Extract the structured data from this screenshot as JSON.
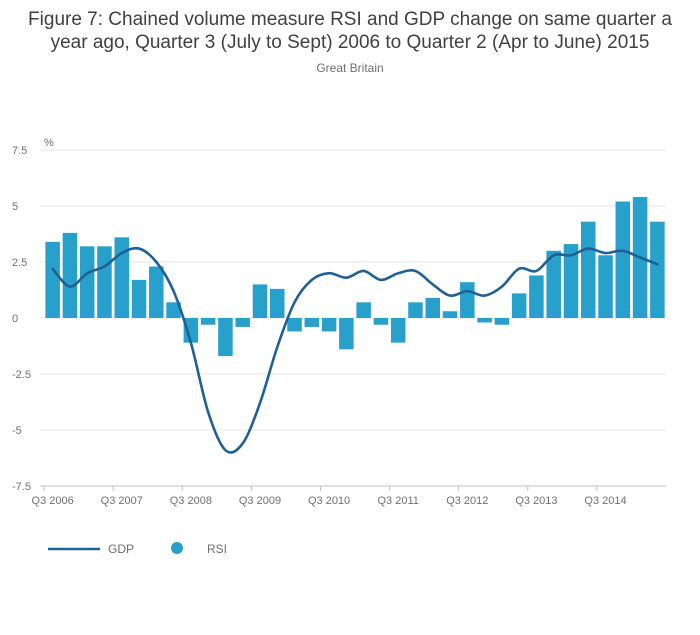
{
  "colors": {
    "gdp": "#206095",
    "rsi": "#27a0cc",
    "grid": "#e6e6e6",
    "axis": "#c0c0c0"
  },
  "chart_data": {
    "type": "bar",
    "title": "Figure 7: Chained volume measure RSI and GDP change on same quarter a year ago, Quarter 3 (July to Sept) 2006 to Quarter 2 (Apr to June) 2015",
    "subtitle": "Great Britain",
    "ylabel": "%",
    "ylim": [
      -7.5,
      7.5
    ],
    "yticks": [
      7.5,
      5,
      2.5,
      0,
      -2.5,
      -5,
      -7.5
    ],
    "ytick_labels": [
      "7.5",
      "5",
      "2.5",
      "0",
      "-2.5",
      "-5",
      "-7.5"
    ],
    "categories": [
      "Q3 2006",
      "Q4 2006",
      "Q1 2007",
      "Q2 2007",
      "Q3 2007",
      "Q4 2007",
      "Q1 2008",
      "Q2 2008",
      "Q3 2008",
      "Q4 2008",
      "Q1 2009",
      "Q2 2009",
      "Q3 2009",
      "Q4 2009",
      "Q1 2010",
      "Q2 2010",
      "Q3 2010",
      "Q4 2010",
      "Q1 2011",
      "Q2 2011",
      "Q3 2011",
      "Q4 2011",
      "Q1 2012",
      "Q2 2012",
      "Q3 2012",
      "Q4 2012",
      "Q1 2013",
      "Q2 2013",
      "Q3 2013",
      "Q4 2013",
      "Q1 2014",
      "Q2 2014",
      "Q3 2014",
      "Q4 2014",
      "Q1 2015",
      "Q2 2015"
    ],
    "xtick_labels": [
      {
        "index": 0,
        "label": "Q3 2006"
      },
      {
        "index": 4,
        "label": "Q3 2007"
      },
      {
        "index": 8,
        "label": "Q3 2008"
      },
      {
        "index": 12,
        "label": "Q3 2009"
      },
      {
        "index": 16,
        "label": "Q3 2010"
      },
      {
        "index": 20,
        "label": "Q3 2011"
      },
      {
        "index": 24,
        "label": "Q3 2012"
      },
      {
        "index": 28,
        "label": "Q3 2013"
      },
      {
        "index": 32,
        "label": "Q3 2014"
      }
    ],
    "series": [
      {
        "name": "RSI",
        "kind": "bar",
        "values": [
          3.4,
          3.8,
          3.2,
          3.2,
          3.6,
          1.7,
          2.3,
          0.7,
          -1.1,
          -0.3,
          -1.7,
          -0.4,
          1.5,
          1.3,
          -0.6,
          -0.4,
          -0.6,
          -1.4,
          0.7,
          -0.3,
          -1.1,
          0.7,
          0.9,
          0.3,
          1.6,
          -0.2,
          -0.3,
          1.1,
          1.9,
          3.0,
          3.3,
          4.3,
          2.8,
          5.2,
          5.4,
          4.3
        ]
      },
      {
        "name": "GDP",
        "kind": "line",
        "values": [
          2.2,
          1.4,
          2.0,
          2.3,
          2.9,
          3.1,
          2.5,
          1.2,
          -1.1,
          -4.2,
          -5.9,
          -5.6,
          -3.8,
          -1.3,
          0.7,
          1.7,
          2.0,
          1.8,
          2.1,
          1.7,
          2.0,
          2.1,
          1.5,
          1.0,
          1.2,
          1.0,
          1.4,
          2.2,
          2.1,
          2.8,
          2.8,
          3.1,
          2.9,
          3.0,
          2.7,
          2.4
        ]
      }
    ],
    "legend": [
      {
        "name": "GDP",
        "symbol": "line"
      },
      {
        "name": "RSI",
        "symbol": "circle"
      }
    ],
    "legend_position": "bottom-left",
    "grid": true
  }
}
